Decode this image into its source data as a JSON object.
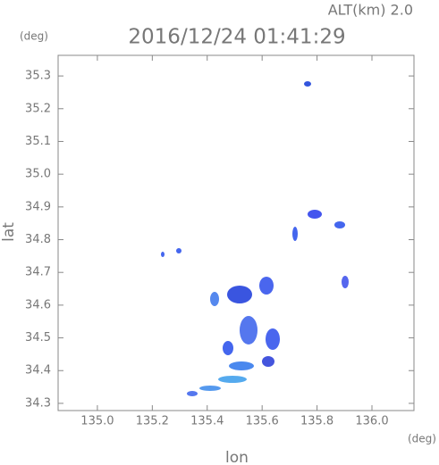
{
  "chart_data": {
    "type": "scatter",
    "title": "2016/12/24 01:41:29",
    "subtitle": "ALT(km) 2.0",
    "x_label": "lon",
    "y_label": "lat",
    "x_unit": "(deg)",
    "y_unit": "(deg)",
    "xlim": [
      134.857,
      136.153
    ],
    "ylim": [
      34.278,
      35.363
    ],
    "xticks": [
      {
        "value": 135,
        "label": "135.0"
      },
      135.2,
      135.4,
      135.6,
      135.8,
      {
        "value": 136,
        "label": "136.0"
      }
    ],
    "yticks": [
      34.3,
      34.4,
      34.5,
      34.6,
      34.7,
      34.8,
      34.9,
      {
        "value": 35,
        "label": "35.0"
      },
      35.1,
      35.2,
      35.3
    ]
  }
}
